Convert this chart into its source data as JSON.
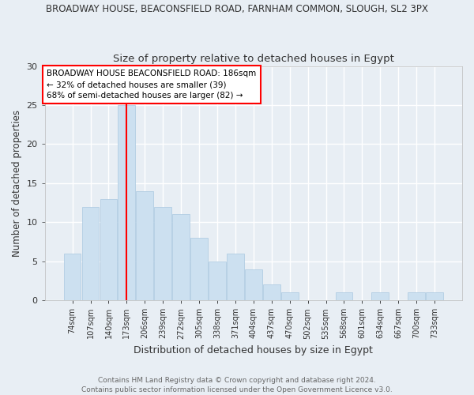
{
  "title1": "BROADWAY HOUSE, BEACONSFIELD ROAD, FARNHAM COMMON, SLOUGH, SL2 3PX",
  "title2": "Size of property relative to detached houses in Egypt",
  "xlabel": "Distribution of detached houses by size in Egypt",
  "ylabel": "Number of detached properties",
  "categories": [
    "74sqm",
    "107sqm",
    "140sqm",
    "173sqm",
    "206sqm",
    "239sqm",
    "272sqm",
    "305sqm",
    "338sqm",
    "371sqm",
    "404sqm",
    "437sqm",
    "470sqm",
    "502sqm",
    "535sqm",
    "568sqm",
    "601sqm",
    "634sqm",
    "667sqm",
    "700sqm",
    "733sqm"
  ],
  "values": [
    6,
    12,
    13,
    25,
    14,
    12,
    11,
    8,
    5,
    6,
    4,
    2,
    1,
    0,
    0,
    1,
    0,
    1,
    0,
    1,
    1
  ],
  "bar_color": "#cce0f0",
  "bar_edge_color": "#aac8e0",
  "red_line_x": 3.0,
  "ylim": [
    0,
    30
  ],
  "yticks": [
    0,
    5,
    10,
    15,
    20,
    25,
    30
  ],
  "annotation_title": "BROADWAY HOUSE BEACONSFIELD ROAD: 186sqm",
  "annotation_line1": "← 32% of detached houses are smaller (39)",
  "annotation_line2": "68% of semi-detached houses are larger (82) →",
  "footer1": "Contains HM Land Registry data © Crown copyright and database right 2024.",
  "footer2": "Contains public sector information licensed under the Open Government Licence v3.0.",
  "bg_color": "#e8eef4",
  "plot_bg_color": "#e8eef4"
}
